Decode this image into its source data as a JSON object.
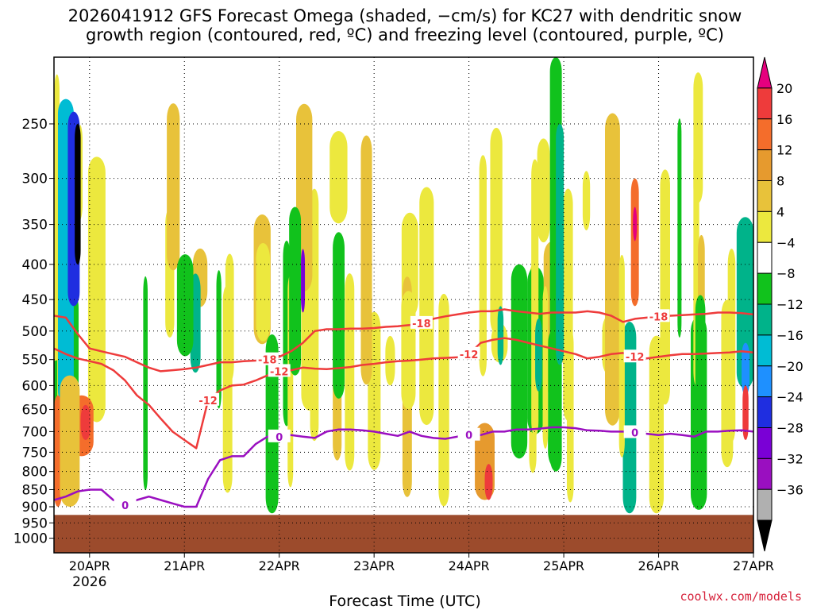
{
  "chart_data": {
    "type": "heatmap",
    "title_line1": "2026041912 GFS Forecast Omega (shaded, −cm/s) for KC27 with dendritic snow",
    "title_line2": "growth region (contoured, red, ºC) and freezing level (contoured, purple, ºC)",
    "xlabel": "Forecast Time (UTC)",
    "ylabel": "",
    "credit": "coolwx.com/models",
    "x_ticks": [
      "20APR",
      "21APR",
      "22APR",
      "23APR",
      "24APR",
      "25APR",
      "26APR",
      "27APR"
    ],
    "x_year": "2026",
    "xlim_hours": [
      -9,
      168
    ],
    "y_ticks": [
      250,
      300,
      350,
      400,
      450,
      500,
      550,
      600,
      650,
      700,
      750,
      800,
      850,
      900,
      950,
      1000
    ],
    "ylim_hpa": [
      200,
      1050
    ],
    "ground_level_hpa": 925,
    "colorbar": {
      "labels": [
        "20",
        "16",
        "12",
        "8",
        "4",
        "−4",
        "−8",
        "−12",
        "−16",
        "−20",
        "−24",
        "−28",
        "−32",
        "−36"
      ],
      "colors": [
        "#e6007e",
        "#ee3b3b",
        "#f46d2b",
        "#e69a2e",
        "#e8c23a",
        "#ece83e",
        "#ffffff",
        "#11c21c",
        "#00b38a",
        "#00bcd4",
        "#1e90ff",
        "#1f2ee0",
        "#7a00d6",
        "#9a0fc0",
        "#b0b0b0",
        "#000000"
      ]
    },
    "contour_labels": {
      "dgz_top": "-18",
      "dgz_bottom": "-12",
      "freezing": "0"
    },
    "series": [
      {
        "name": "-18C isotherm",
        "color": "#ee3b3b",
        "x": [
          -9,
          -6,
          -3,
          0,
          3,
          6,
          9,
          12,
          15,
          18,
          21,
          24,
          27,
          30,
          33,
          36,
          39,
          42,
          45,
          48,
          51,
          54,
          57,
          60,
          63,
          66,
          69,
          72,
          75,
          78,
          81,
          84,
          87,
          90,
          93,
          96,
          99,
          102,
          105,
          108,
          111,
          114,
          117,
          120,
          123,
          126,
          129,
          132,
          135,
          138,
          141,
          144,
          147,
          150,
          153,
          156,
          159,
          162,
          165,
          168
        ],
        "y": [
          475,
          478,
          505,
          530,
          535,
          540,
          545,
          555,
          565,
          572,
          570,
          568,
          565,
          560,
          555,
          555,
          553,
          552,
          550,
          545,
          535,
          520,
          500,
          497,
          497,
          496,
          496,
          495,
          493,
          492,
          490,
          487,
          480,
          476,
          473,
          470,
          468,
          468,
          465,
          468,
          470,
          472,
          470,
          470,
          470,
          468,
          470,
          475,
          485,
          480,
          478,
          476,
          475,
          474,
          473,
          472,
          470,
          470,
          471,
          473
        ]
      },
      {
        "name": "-12C isotherm",
        "color": "#ee3b3b",
        "x": [
          -9,
          -6,
          -3,
          0,
          3,
          6,
          9,
          12,
          15,
          18,
          21,
          24,
          27,
          30,
          33,
          36,
          39,
          42,
          45,
          48,
          51,
          54,
          57,
          60,
          63,
          66,
          69,
          72,
          75,
          78,
          81,
          84,
          87,
          90,
          93,
          96,
          99,
          102,
          105,
          108,
          111,
          114,
          117,
          120,
          123,
          126,
          129,
          132,
          135,
          138,
          141,
          144,
          147,
          150,
          153,
          156,
          159,
          162,
          165,
          168
        ],
        "y": [
          530,
          540,
          548,
          553,
          558,
          570,
          590,
          620,
          640,
          670,
          700,
          720,
          740,
          630,
          610,
          600,
          598,
          590,
          580,
          572,
          570,
          565,
          567,
          568,
          566,
          564,
          560,
          558,
          555,
          553,
          552,
          550,
          548,
          547,
          546,
          540,
          520,
          515,
          512,
          515,
          520,
          525,
          530,
          535,
          540,
          548,
          545,
          540,
          538,
          545,
          548,
          545,
          542,
          540,
          540,
          539,
          538,
          537,
          535,
          537
        ]
      },
      {
        "name": "0C freezing level",
        "color": "#9a0fc0",
        "x": [
          -9,
          -6,
          -3,
          0,
          3,
          6,
          9,
          12,
          15,
          18,
          21,
          24,
          27,
          30,
          33,
          36,
          39,
          42,
          45,
          48,
          51,
          54,
          57,
          60,
          63,
          66,
          69,
          72,
          75,
          78,
          81,
          84,
          87,
          90,
          93,
          96,
          99,
          102,
          105,
          108,
          111,
          114,
          117,
          120,
          123,
          126,
          129,
          132,
          135,
          138,
          141,
          144,
          147,
          150,
          153,
          156,
          159,
          162,
          165,
          168
        ],
        "y": [
          880,
          870,
          855,
          850,
          850,
          880,
          895,
          880,
          870,
          880,
          890,
          900,
          900,
          820,
          770,
          760,
          760,
          730,
          712,
          712,
          708,
          712,
          715,
          700,
          695,
          695,
          697,
          700,
          705,
          710,
          700,
          710,
          715,
          717,
          712,
          708,
          708,
          700,
          700,
          695,
          695,
          693,
          690,
          690,
          692,
          697,
          698,
          700,
          700,
          702,
          705,
          708,
          705,
          708,
          712,
          700,
          700,
          698,
          697,
          700
        ]
      }
    ]
  }
}
